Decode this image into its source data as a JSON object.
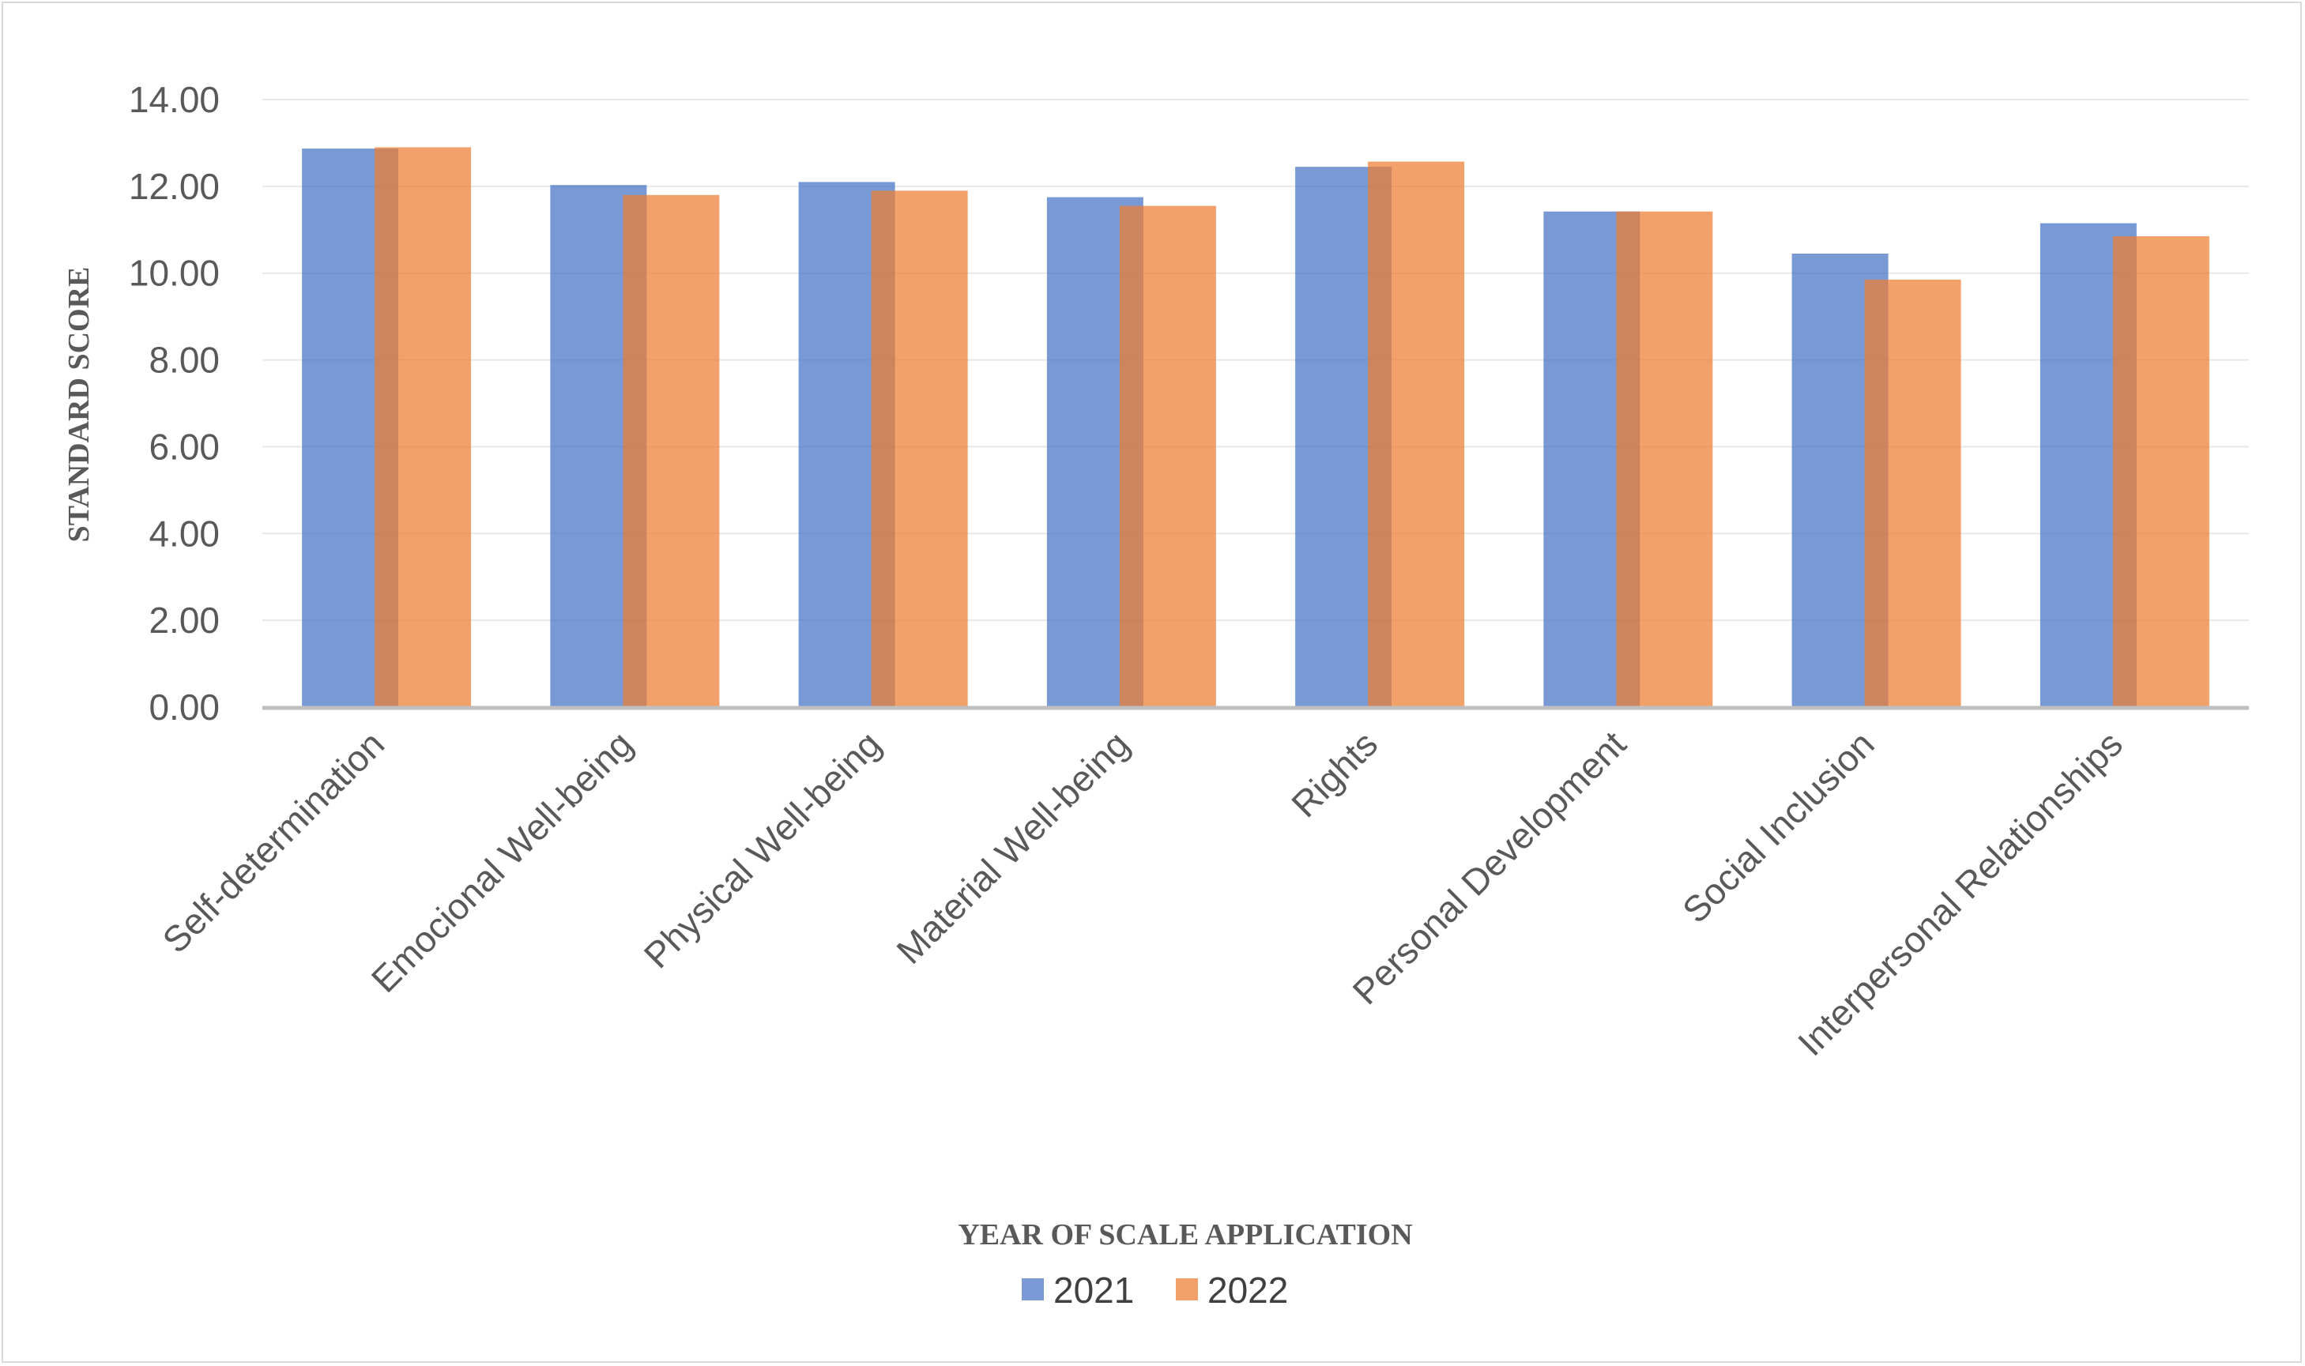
{
  "chart_data": {
    "type": "bar",
    "title": "",
    "xlabel": "YEAR OF SCALE APPLICATION",
    "ylabel": "STANDARD SCORE",
    "ylim": [
      0,
      14
    ],
    "yticks": [
      "0.00",
      "2.00",
      "4.00",
      "6.00",
      "8.00",
      "10.00",
      "12.00",
      "14.00"
    ],
    "grid": true,
    "legend_position": "bottom",
    "categories": [
      "Self-determination",
      "Emocional Well-being",
      "Physical Well-being",
      "Material Well-being",
      "Rights",
      "Personal Development",
      "Social Inclusion",
      "Interpersonal Relationships"
    ],
    "series": [
      {
        "name": "2021",
        "color": "#4472C4",
        "values": [
          12.87,
          12.03,
          12.1,
          11.75,
          12.45,
          11.42,
          10.45,
          11.15
        ]
      },
      {
        "name": "2022",
        "color": "#ED7D31",
        "values": [
          12.9,
          11.8,
          11.9,
          11.55,
          12.57,
          11.42,
          9.85,
          10.85
        ]
      }
    ]
  }
}
